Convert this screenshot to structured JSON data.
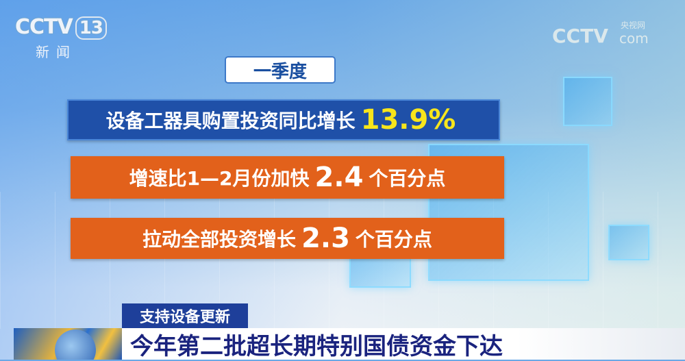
{
  "channel_logo": {
    "brand": "CCTV",
    "number": "13",
    "subtitle": "新闻"
  },
  "watermark": {
    "brand": "CCTV",
    "cn": "央视网",
    "domain": "com"
  },
  "infographic": {
    "period": "一季度",
    "line1": {
      "text": "设备工器具购置投资同比增长",
      "value": "13.9%"
    },
    "line2": {
      "prefix": "增速比1—2月份加快",
      "value": "2.4",
      "suffix": "个百分点"
    },
    "line3": {
      "prefix": "拉动全部投资增长",
      "value": "2.3",
      "suffix": "个百分点"
    }
  },
  "lower_third": {
    "tag": "支持设备更新",
    "headline": "今年第二批超长期特别国债资金下达"
  },
  "colors": {
    "blue_banner": "#1f50a8",
    "orange_banner": "#e2611b",
    "highlight": "#f7e51c",
    "headline_text": "#1a237e"
  }
}
